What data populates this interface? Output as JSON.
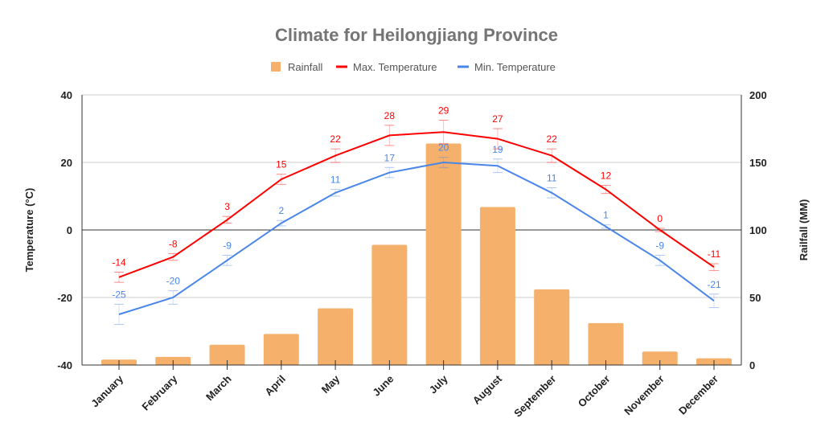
{
  "chart_data": {
    "type": "bar+line",
    "title": "Climate for Heilongjiang Province",
    "categories": [
      "January",
      "February",
      "March",
      "April",
      "May",
      "June",
      "July",
      "August",
      "September",
      "October",
      "November",
      "December"
    ],
    "left_axis": {
      "label": "Temperature (°C)",
      "range": [
        -40,
        40
      ],
      "ticks": [
        -40,
        -20,
        0,
        20,
        40
      ]
    },
    "right_axis": {
      "label": "Railfall (MM)",
      "range": [
        0,
        200
      ],
      "ticks": [
        0,
        50,
        100,
        150,
        200
      ]
    },
    "grid": true,
    "legend_position": "top",
    "series": [
      {
        "name": "Rainfall",
        "type": "bar",
        "axis": "right",
        "color": "#f5b16b",
        "values": [
          4,
          6,
          15,
          23,
          42,
          89,
          164,
          117,
          56,
          31,
          10,
          5
        ]
      },
      {
        "name": "Max. Temperature",
        "type": "line",
        "axis": "left",
        "color": "#ff0000",
        "values": [
          -14,
          -8,
          3,
          15,
          22,
          28,
          29,
          27,
          22,
          12,
          0,
          -11
        ],
        "error": [
          1.5,
          1,
          1,
          1.5,
          2,
          3,
          3.5,
          3,
          2,
          1.2,
          0.5,
          1
        ]
      },
      {
        "name": "Min. Temperature",
        "type": "line",
        "axis": "left",
        "color": "#4a86e8",
        "values": [
          -25,
          -20,
          -9,
          2,
          11,
          17,
          20,
          19,
          11,
          1,
          -9,
          -21
        ],
        "error": [
          3,
          2,
          1.5,
          0.8,
          1,
          1.5,
          1.5,
          2,
          1.5,
          0.5,
          1.5,
          2
        ]
      }
    ]
  }
}
